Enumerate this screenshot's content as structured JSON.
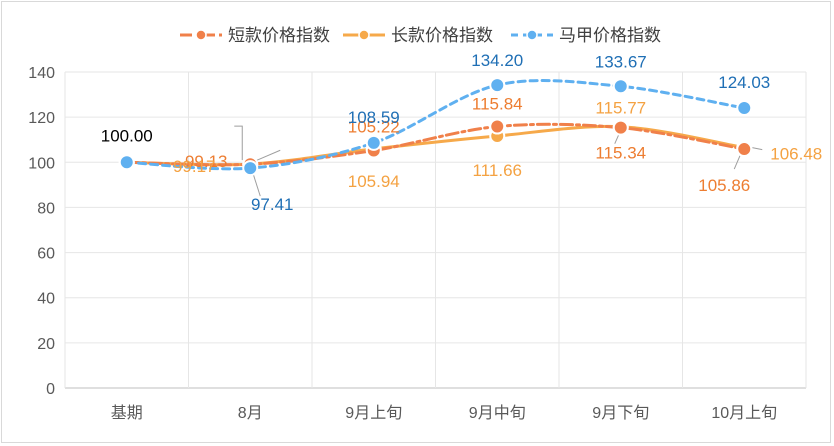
{
  "chart_data": {
    "type": "line",
    "categories": [
      "基期",
      "8月",
      "9月上旬",
      "9月中旬",
      "9月下旬",
      "10月上旬"
    ],
    "ylim": [
      0,
      140
    ],
    "yticks": [
      0,
      20,
      40,
      60,
      80,
      100,
      120,
      140
    ],
    "grid": true,
    "legend_position": "top",
    "series": [
      {
        "name": "短款价格指数",
        "values": [
          100.0,
          99.13,
          105.22,
          115.84,
          115.34,
          105.86
        ],
        "labels": [
          "",
          "99.13",
          "105.22",
          "115.84",
          "115.34",
          "105.86"
        ],
        "color": "#f0804a",
        "label_color": "#ed7d31",
        "style": "dash-dot"
      },
      {
        "name": "长款价格指数",
        "values": [
          100.0,
          99.17,
          105.94,
          111.66,
          115.77,
          106.48
        ],
        "labels": [
          "",
          "99.17",
          "105.94",
          "111.66",
          "115.77",
          "106.48"
        ],
        "color": "#f6a94a",
        "label_color": "#f4a242",
        "style": "solid"
      },
      {
        "name": "马甲价格指数",
        "values": [
          100.0,
          97.41,
          108.59,
          134.2,
          133.67,
          124.03
        ],
        "labels": [
          "100.00",
          "97.41",
          "108.59",
          "134.20",
          "133.67",
          "124.03"
        ],
        "color": "#5fb0f0",
        "label_color": "#1f6fb5",
        "style": "dashed"
      }
    ]
  }
}
